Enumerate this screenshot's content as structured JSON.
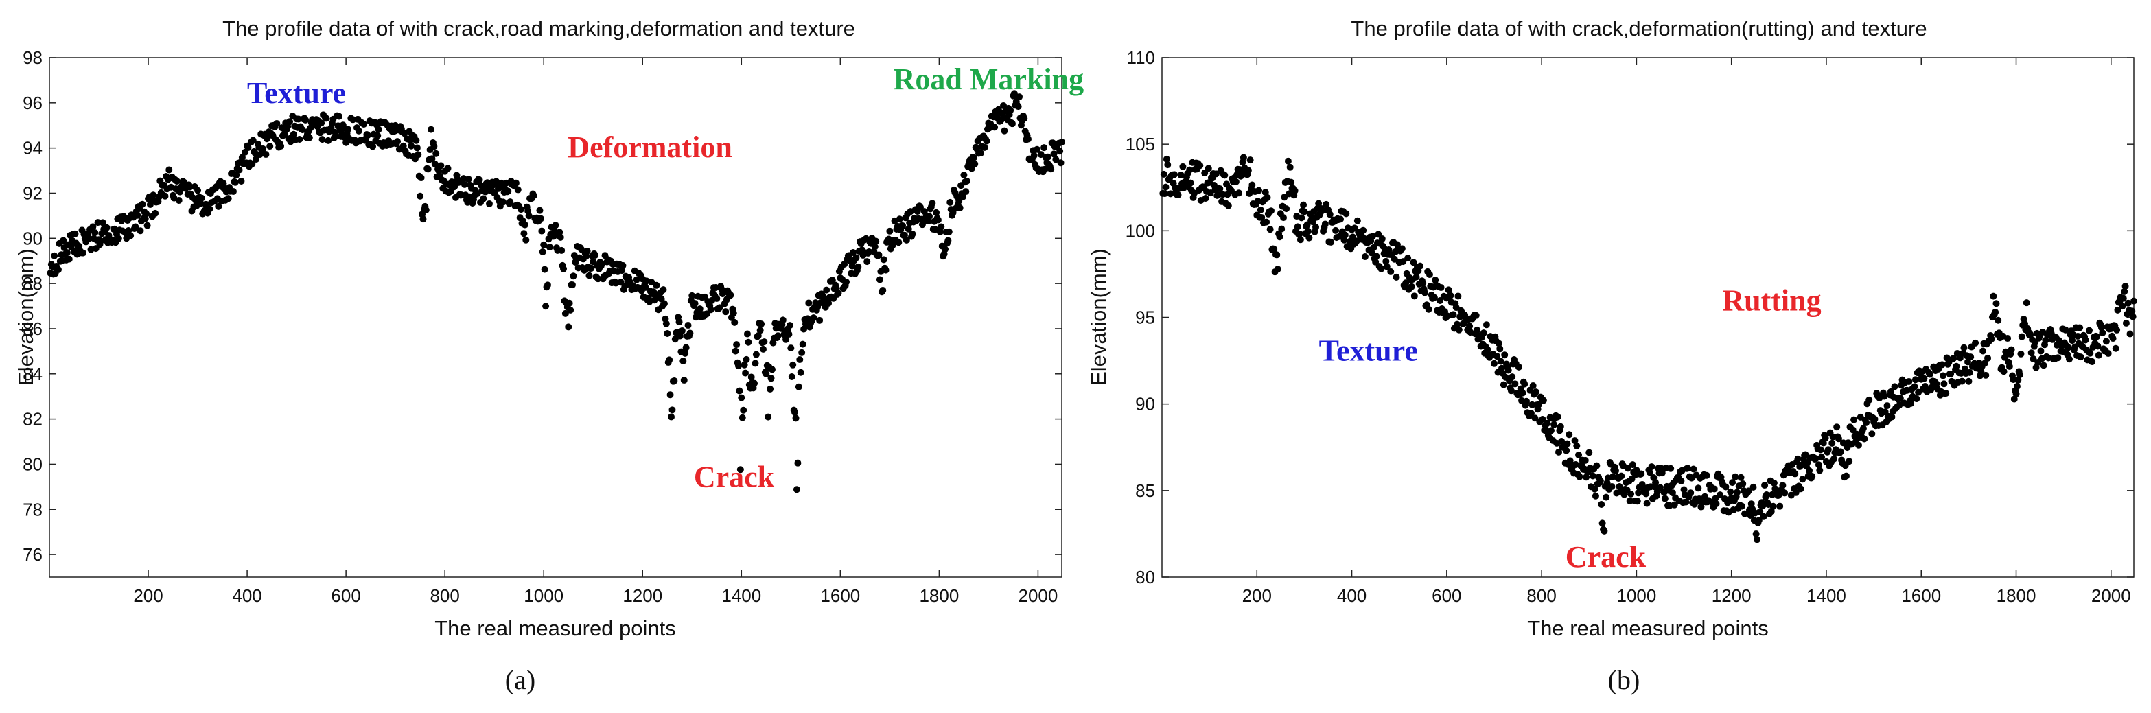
{
  "chart_data": [
    {
      "type": "scatter",
      "panel": "a",
      "title": "The profile data of with crack,road marking,deformation and texture",
      "xlabel": "The real measured points",
      "ylabel": "Elevation(mm)",
      "xlim": [
        0,
        2048
      ],
      "ylim": [
        75,
        98
      ],
      "xticks": [
        200,
        400,
        600,
        800,
        1000,
        1200,
        1400,
        1600,
        1800,
        2000
      ],
      "yticks": [
        76,
        78,
        80,
        82,
        84,
        86,
        88,
        90,
        92,
        94,
        96,
        98
      ],
      "grid": false,
      "legend": "none",
      "marker_color": "#000000",
      "profile": [
        [
          0,
          88.8
        ],
        [
          40,
          89.6
        ],
        [
          80,
          90.0
        ],
        [
          120,
          90.3
        ],
        [
          160,
          90.5
        ],
        [
          200,
          91.2
        ],
        [
          240,
          92.6
        ],
        [
          280,
          91.8
        ],
        [
          320,
          91.5
        ],
        [
          360,
          92.2
        ],
        [
          400,
          93.5
        ],
        [
          440,
          94.3
        ],
        [
          480,
          94.8
        ],
        [
          520,
          94.9
        ],
        [
          560,
          94.9
        ],
        [
          600,
          94.8
        ],
        [
          640,
          94.7
        ],
        [
          680,
          94.6
        ],
        [
          720,
          94.3
        ],
        [
          760,
          93.6
        ],
        [
          800,
          92.6
        ],
        [
          840,
          92.1
        ],
        [
          880,
          92.0
        ],
        [
          920,
          92.0
        ],
        [
          960,
          91.8
        ],
        [
          1000,
          91.0
        ],
        [
          1040,
          89.6
        ],
        [
          1080,
          89.0
        ],
        [
          1120,
          88.7
        ],
        [
          1160,
          88.3
        ],
        [
          1200,
          87.9
        ],
        [
          1240,
          87.3
        ],
        [
          1280,
          87.0
        ],
        [
          1320,
          87.0
        ],
        [
          1360,
          87.5
        ],
        [
          1400,
          86.5
        ],
        [
          1440,
          85.7
        ],
        [
          1480,
          86.0
        ],
        [
          1520,
          86.3
        ],
        [
          1560,
          87.0
        ],
        [
          1600,
          88.2
        ],
        [
          1640,
          89.3
        ],
        [
          1680,
          89.8
        ],
        [
          1720,
          90.3
        ],
        [
          1760,
          90.9
        ],
        [
          1800,
          91.0
        ],
        [
          1840,
          91.8
        ],
        [
          1880,
          94.2
        ],
        [
          1920,
          95.2
        ],
        [
          1960,
          95.6
        ],
        [
          1990,
          93.4
        ],
        [
          2048,
          93.8
        ]
      ],
      "spread": 0.6,
      "dips": [
        [
          1005,
          3.5
        ],
        [
          1050,
          4.5
        ],
        [
          1258,
          5.2
        ],
        [
          1285,
          3.0
        ],
        [
          1398,
          6.5
        ],
        [
          1420,
          4.0
        ],
        [
          1455,
          3.5
        ],
        [
          1512,
          6.5
        ],
        [
          1685,
          2.5
        ],
        [
          1810,
          2.5
        ],
        [
          758,
          4.0
        ],
        [
          960,
          2.0
        ]
      ],
      "spikes": [
        [
          770,
          1.5
        ],
        [
          1960,
          1.0
        ]
      ],
      "annotations": [
        {
          "text": "Texture",
          "x": 500,
          "y": 96.0,
          "color": "#1f1fd6"
        },
        {
          "text": "Road Marking",
          "x": 1900,
          "y": 96.6,
          "color": "#1ea84a"
        },
        {
          "text": "Deformation",
          "x": 1215,
          "y": 93.6,
          "color": "#e8262a"
        },
        {
          "text": "Crack",
          "x": 1385,
          "y": 79.0,
          "color": "#e8262a"
        }
      ],
      "caption": "(a)"
    },
    {
      "type": "scatter",
      "panel": "b",
      "title": "The profile data of with crack,deformation(rutting) and texture",
      "xlabel": "The real measured points",
      "ylabel": "Elevation(mm)",
      "xlim": [
        0,
        2048
      ],
      "ylim": [
        80,
        110
      ],
      "xticks": [
        200,
        400,
        600,
        800,
        1000,
        1200,
        1400,
        1600,
        1800,
        2000
      ],
      "yticks": [
        80,
        85,
        90,
        95,
        100,
        105,
        110
      ],
      "grid": false,
      "legend": "none",
      "marker_color": "#000000",
      "profile": [
        [
          0,
          103.0
        ],
        [
          40,
          103.2
        ],
        [
          80,
          102.8
        ],
        [
          120,
          102.5
        ],
        [
          160,
          102.6
        ],
        [
          200,
          101.8
        ],
        [
          240,
          101.0
        ],
        [
          280,
          100.6
        ],
        [
          320,
          100.5
        ],
        [
          360,
          100.4
        ],
        [
          400,
          100.0
        ],
        [
          440,
          99.2
        ],
        [
          480,
          98.5
        ],
        [
          520,
          97.6
        ],
        [
          560,
          96.6
        ],
        [
          600,
          95.7
        ],
        [
          640,
          95.0
        ],
        [
          680,
          93.7
        ],
        [
          720,
          92.2
        ],
        [
          760,
          91.0
        ],
        [
          800,
          89.3
        ],
        [
          840,
          88.0
        ],
        [
          880,
          86.7
        ],
        [
          920,
          85.6
        ],
        [
          960,
          85.5
        ],
        [
          1000,
          85.4
        ],
        [
          1040,
          85.3
        ],
        [
          1080,
          85.2
        ],
        [
          1120,
          85.2
        ],
        [
          1160,
          85.0
        ],
        [
          1200,
          84.8
        ],
        [
          1240,
          84.6
        ],
        [
          1280,
          84.7
        ],
        [
          1320,
          85.4
        ],
        [
          1360,
          86.3
        ],
        [
          1400,
          87.3
        ],
        [
          1440,
          88.0
        ],
        [
          1480,
          89.0
        ],
        [
          1520,
          89.8
        ],
        [
          1560,
          90.4
        ],
        [
          1600,
          90.9
        ],
        [
          1640,
          91.5
        ],
        [
          1680,
          92.0
        ],
        [
          1720,
          92.6
        ],
        [
          1760,
          92.8
        ],
        [
          1800,
          93.0
        ],
        [
          1840,
          93.2
        ],
        [
          1880,
          93.3
        ],
        [
          1920,
          93.4
        ],
        [
          1960,
          93.5
        ],
        [
          2000,
          93.8
        ],
        [
          2048,
          95.0
        ]
      ],
      "spread": 1.1,
      "dips": [
        [
          930,
          3.0
        ],
        [
          1255,
          2.5
        ],
        [
          1800,
          3.0
        ],
        [
          240,
          3.5
        ],
        [
          1440,
          2.0
        ]
      ],
      "spikes": [
        [
          180,
          2.5
        ],
        [
          270,
          3.5
        ],
        [
          1755,
          3.5
        ],
        [
          1820,
          3.5
        ],
        [
          2025,
          2.0
        ]
      ],
      "annotations": [
        {
          "text": "Texture",
          "x": 435,
          "y": 92.5,
          "color": "#1f1fd6"
        },
        {
          "text": "Rutting",
          "x": 1285,
          "y": 95.4,
          "color": "#e8262a"
        },
        {
          "text": "Crack",
          "x": 935,
          "y": 80.6,
          "color": "#e8262a"
        }
      ],
      "caption": "(b)"
    }
  ]
}
